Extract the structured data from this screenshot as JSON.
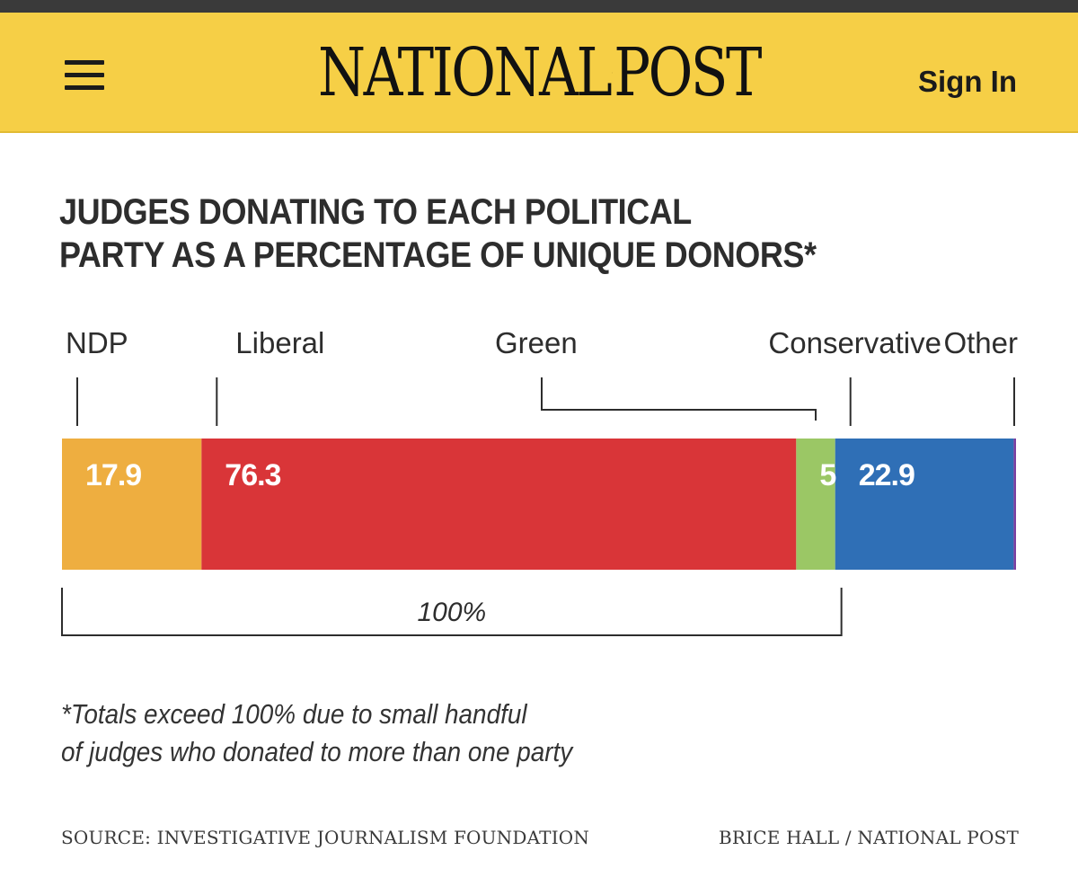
{
  "header": {
    "logo_left": "NATIONAL",
    "logo_right": "POST",
    "sign_in_label": "Sign In",
    "menu_icon": "hamburger-menu-icon",
    "logo_icon": "maple-leaf-icon"
  },
  "colors": {
    "header_bg": "#f6cf46",
    "ndp": "#eeae40",
    "liberal": "#d93538",
    "green": "#9bc765",
    "conservative": "#2f6fb6",
    "other": "#7b3fa0"
  },
  "chart_data": {
    "type": "bar",
    "orientation": "horizontal-stacked",
    "title_lines": [
      "JUDGES DONATING TO EACH POLITICAL",
      "PARTY AS A PERCENTAGE OF UNIQUE DONORS*"
    ],
    "series": [
      {
        "name": "NDP",
        "value": 17.9,
        "label": "17.9",
        "color": "#eeae40"
      },
      {
        "name": "Liberal",
        "value": 76.3,
        "label": "76.3",
        "color": "#d93538"
      },
      {
        "name": "Green",
        "value": 5,
        "label": "5",
        "color": "#9bc765"
      },
      {
        "name": "Conservative",
        "value": 22.9,
        "label": "22.9",
        "color": "#2f6fb6"
      },
      {
        "name": "Other",
        "value": 0.3,
        "label": "",
        "color": "#7b3fa0"
      }
    ],
    "total_value": 122.4,
    "bracket_value": 100,
    "bracket_label": "100%",
    "footnote_lines": [
      "*Totals exceed 100% due to small handful",
      "of judges who donated to more than one party"
    ],
    "source": "SOURCE: INVESTIGATIVE JOURNALISM FOUNDATION",
    "credit": "BRICE HALL / NATIONAL POST"
  }
}
